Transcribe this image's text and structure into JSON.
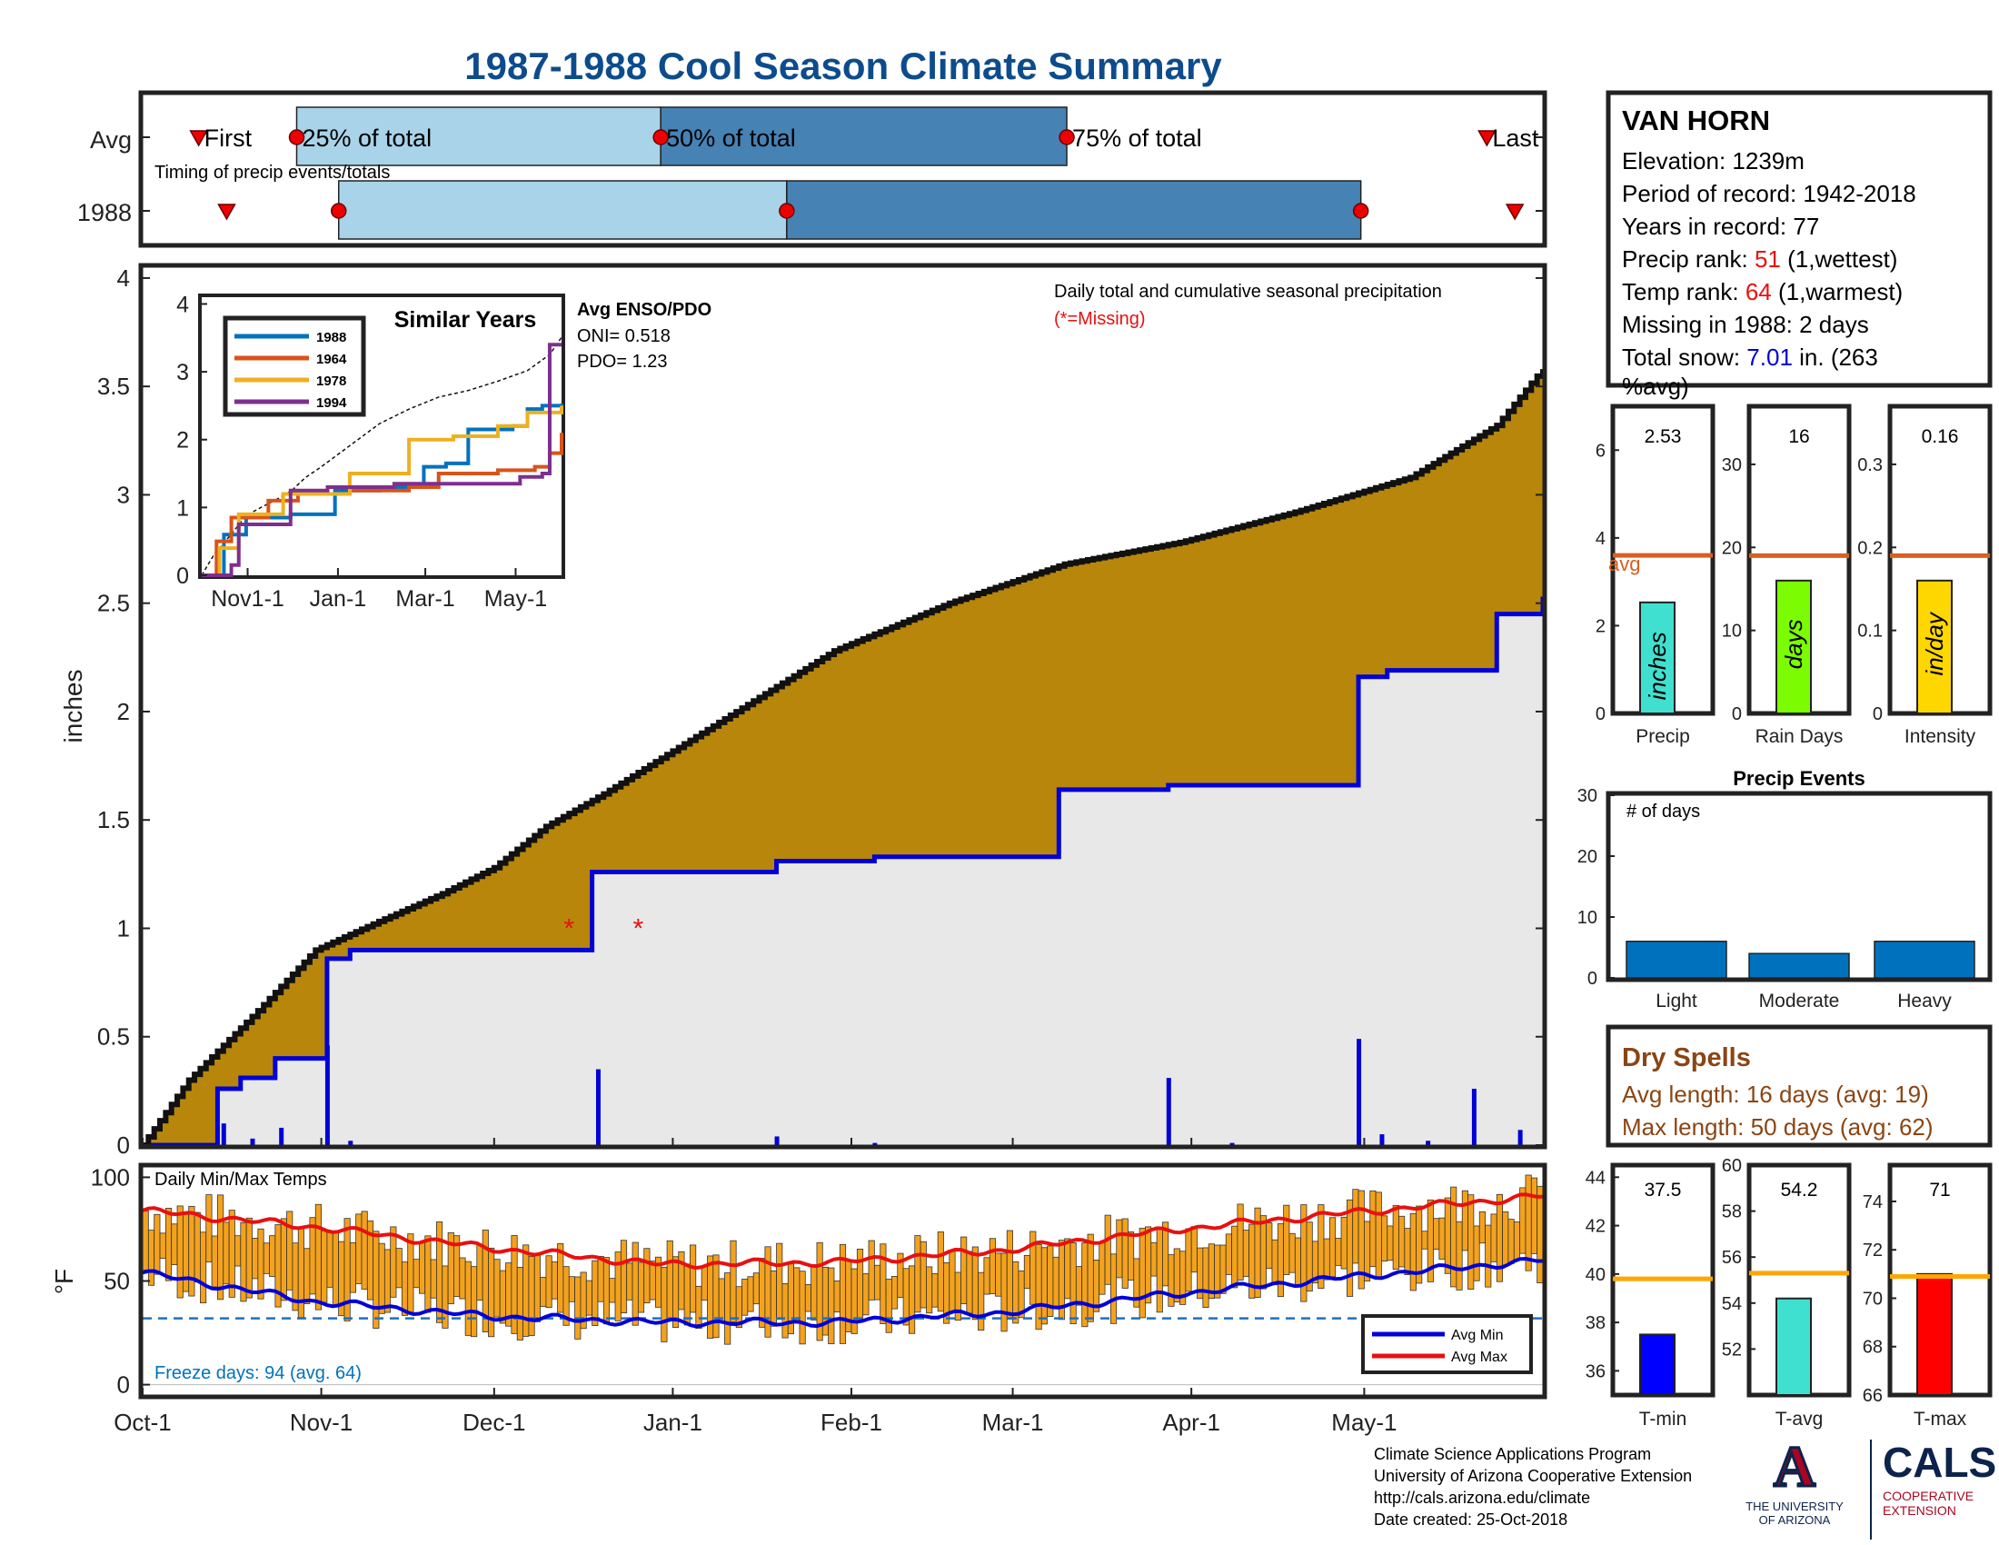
{
  "title": "1987-1988 Cool Season Climate Summary",
  "colors": {
    "title": "#0d4c8c",
    "precip_fill": "#b8860b",
    "avg_fill": "#e8e8e8",
    "blue": "#0000d8",
    "red": "#e81010",
    "light_blue": "#a9d3e8",
    "mid_blue": "#4682b4",
    "orange_bar": "#f4a21c",
    "avg_line": "#d95f20"
  },
  "timing": {
    "row_avg": "Avg",
    "row_year": "1988",
    "caption": "Timing of precip events/totals",
    "first": "First",
    "q25": "25% of total",
    "q50": "50% of total",
    "q75": "75% of total",
    "last": "Last",
    "avg_values": {
      "first": 0.04,
      "q25": 0.11,
      "q50": 0.37,
      "q75": 0.66,
      "last": 0.96
    },
    "year_values": {
      "first": 0.06,
      "q25": 0.14,
      "q50": 0.46,
      "q75": 0.87,
      "last": 0.98
    }
  },
  "station": {
    "name": "VAN HORN",
    "elevation": "Elevation: 1239m",
    "period": "Period of record: 1942-2018",
    "years": "Years in record: 77",
    "precip_rank_label": "Precip rank: ",
    "precip_rank_value": "51",
    "precip_rank_suffix": " (1,wettest)",
    "temp_rank_label": "Temp rank: ",
    "temp_rank_value": "64",
    "temp_rank_suffix": " (1,warmest)",
    "missing": "Missing in 1988: 2 days",
    "snow_label": "Total snow: ",
    "snow_value": "7.01",
    "snow_suffix": " in. (263",
    "snow_suffix2": "%avg)"
  },
  "main_chart": {
    "ylabel": "inches",
    "annotation": "Daily total and cumulative seasonal precipitation",
    "missing_note": "(*=Missing)",
    "y_ticks": [
      "0",
      "0.5",
      "1",
      "1.5",
      "2",
      "2.5",
      "3",
      "3.5",
      "4"
    ],
    "x_ticks": [
      "Oct-1",
      "Nov-1",
      "Dec-1",
      "Jan-1",
      "Feb-1",
      "Mar-1",
      "Apr-1",
      "May-1"
    ]
  },
  "inset": {
    "title": "Similar Years",
    "legend": [
      "1988",
      "1964",
      "1978",
      "1994"
    ],
    "legend_colors": [
      "#0072bd",
      "#d95319",
      "#edb120",
      "#7e2f8e"
    ],
    "y_ticks": [
      "0",
      "1",
      "2",
      "3",
      "4"
    ],
    "x_ticks": [
      "Nov1-1",
      "Jan-1",
      "Mar-1",
      "May-1"
    ],
    "enso_title": "Avg ENSO/PDO",
    "oni": "ONI= 0.518",
    "pdo": "PDO= 1.23"
  },
  "temp_chart": {
    "title": "Daily Min/Max Temps",
    "ylabel": "°F",
    "y_ticks": [
      "0",
      "50",
      "100"
    ],
    "freeze": "Freeze days: 94 (avg. 64)",
    "legend_min": "Avg Min",
    "legend_max": "Avg Max"
  },
  "chart_data": [
    {
      "type": "area",
      "title": "Daily total and cumulative seasonal precipitation",
      "ylabel": "inches",
      "ylim": [
        0,
        4
      ],
      "x_range": [
        "Oct-1",
        "May-31"
      ],
      "series": [
        {
          "name": "Avg cumulative",
          "x": [
            0,
            8,
            20,
            30,
            40,
            52,
            61,
            70,
            80,
            100,
            120,
            140,
            160,
            180,
            200,
            220,
            235,
            243
          ],
          "values": [
            0,
            0.3,
            0.62,
            0.9,
            1.02,
            1.16,
            1.28,
            1.47,
            1.62,
            1.95,
            2.28,
            2.5,
            2.68,
            2.78,
            2.92,
            3.08,
            3.32,
            3.58
          ]
        },
        {
          "name": "1988 cumulative",
          "x": [
            0,
            13,
            17,
            23,
            32,
            36,
            78,
            110,
            127,
            142,
            159,
            178,
            189,
            211,
            216,
            223,
            235,
            243
          ],
          "values": [
            0,
            0.26,
            0.31,
            0.4,
            0.86,
            0.9,
            1.26,
            1.31,
            1.33,
            1.33,
            1.64,
            1.66,
            1.66,
            2.16,
            2.19,
            2.19,
            2.45,
            2.53
          ]
        },
        {
          "name": "Daily precip",
          "x": [
            14,
            19,
            24,
            32,
            36,
            79,
            110,
            127,
            178,
            189,
            211,
            215,
            223,
            231,
            239
          ],
          "values": [
            0.1,
            0.03,
            0.08,
            0.46,
            0.02,
            0.35,
            0.04,
            0.01,
            0.31,
            0.01,
            0.49,
            0.05,
            0.02,
            0.26,
            0.07
          ]
        },
        {
          "name": "Missing",
          "x": [
            74,
            86
          ],
          "values": [
            1.0,
            1.0
          ]
        }
      ]
    },
    {
      "type": "line",
      "title": "Similar Years",
      "ylim": [
        0,
        4
      ],
      "series": [
        {
          "name": "1988",
          "x": [
            0,
            15,
            30,
            60,
            90,
            120,
            150,
            165,
            180,
            210,
            220,
            230,
            243
          ],
          "values": [
            0,
            0.6,
            0.85,
            0.9,
            1.25,
            1.3,
            1.6,
            1.65,
            2.15,
            2.2,
            2.45,
            2.5,
            2.53
          ]
        },
        {
          "name": "1964",
          "x": [
            0,
            10,
            20,
            45,
            65,
            100,
            140,
            160,
            200,
            225,
            235,
            243
          ],
          "values": [
            0,
            0.5,
            0.85,
            1.1,
            1.2,
            1.25,
            1.3,
            1.5,
            1.55,
            1.6,
            1.8,
            2.1
          ]
        },
        {
          "name": "1978",
          "x": [
            0,
            12,
            25,
            50,
            55,
            80,
            100,
            110,
            140,
            170,
            200,
            220,
            243
          ],
          "values": [
            0,
            0.4,
            0.9,
            0.9,
            1.2,
            1.2,
            1.5,
            1.5,
            2.0,
            2.05,
            2.2,
            2.4,
            2.5
          ]
        },
        {
          "name": "1994",
          "x": [
            0,
            20,
            25,
            40,
            60,
            85,
            130,
            170,
            215,
            230,
            235,
            243
          ],
          "values": [
            0,
            0.15,
            0.75,
            0.75,
            1.25,
            1.3,
            1.35,
            1.35,
            1.45,
            1.5,
            3.4,
            3.4
          ]
        }
      ]
    },
    {
      "type": "bar",
      "title": "Precip",
      "categories": [
        "Precip"
      ],
      "values": [
        2.53
      ],
      "avg": 3.6,
      "ylim": [
        0,
        7
      ],
      "label": "inches"
    },
    {
      "type": "bar",
      "title": "Rain Days",
      "categories": [
        "Rain Days"
      ],
      "values": [
        16
      ],
      "avg": 19,
      "ylim": [
        0,
        37
      ],
      "label": "days"
    },
    {
      "type": "bar",
      "title": "Intensity",
      "categories": [
        "Intensity"
      ],
      "values": [
        0.16
      ],
      "avg": 0.19,
      "ylim": [
        0,
        0.37
      ],
      "label": "in/day"
    },
    {
      "type": "bar",
      "title": "Precip Events",
      "ylabel": "# of days",
      "categories": [
        "Light",
        "Moderate",
        "Heavy"
      ],
      "values": [
        6,
        4,
        6
      ],
      "ylim": [
        0,
        30
      ]
    },
    {
      "type": "bar",
      "title": "Daily Min/Max Temps",
      "ylabel": "°F",
      "ylim": [
        -5,
        105
      ],
      "series": [
        {
          "name": "Avg Max",
          "x": [
            0,
            30,
            60,
            90,
            120,
            150,
            180,
            210,
            243
          ],
          "values": [
            84,
            76,
            66,
            58,
            59,
            65,
            75,
            83,
            91
          ]
        },
        {
          "name": "Avg Min",
          "x": [
            0,
            30,
            60,
            90,
            120,
            150,
            180,
            210,
            243
          ],
          "values": [
            54,
            40,
            33,
            30,
            30,
            35,
            44,
            52,
            60
          ]
        },
        {
          "name": "Freeze line",
          "x": [
            0,
            243
          ],
          "values": [
            32,
            32
          ]
        }
      ]
    },
    {
      "type": "bar",
      "title": "T-min",
      "categories": [
        "T-min"
      ],
      "values": [
        37.5
      ],
      "avg": 39.8,
      "ylim": [
        35,
        44.5
      ]
    },
    {
      "type": "bar",
      "title": "T-avg",
      "categories": [
        "T-avg"
      ],
      "values": [
        54.2
      ],
      "avg": 55.3,
      "ylim": [
        50,
        60
      ]
    },
    {
      "type": "bar",
      "title": "T-max",
      "categories": [
        "T-max"
      ],
      "values": [
        71
      ],
      "avg": 70.9,
      "ylim": [
        66,
        75.5
      ]
    }
  ],
  "right_panels": {
    "precip_value_labels": [
      "2.53",
      "16",
      "0.16"
    ],
    "precip_titles": [
      "Precip",
      "Rain Days",
      "Intensity"
    ],
    "precip_bar_labels": [
      "inches",
      "days",
      "in/day"
    ],
    "avg_label": "avg",
    "precip_ticks": [
      [
        "0",
        "2",
        "4",
        "6"
      ],
      [
        "0",
        "10",
        "20",
        "30"
      ],
      [
        "0",
        "0.1",
        "0.2",
        "0.3"
      ]
    ],
    "events_title": "Precip Events",
    "events_ylabel": "# of days",
    "events_ticks": [
      "0",
      "10",
      "20",
      "30"
    ],
    "events_categories": [
      "Light",
      "Moderate",
      "Heavy"
    ],
    "temp_value_labels": [
      "37.5",
      "54.2",
      "71"
    ],
    "temp_titles": [
      "T-min",
      "T-avg",
      "T-max"
    ],
    "temp_ticks": [
      [
        "36",
        "38",
        "40",
        "42",
        "44"
      ],
      [
        "52",
        "54",
        "56",
        "58",
        "60"
      ],
      [
        "66",
        "68",
        "70",
        "72",
        "74"
      ]
    ]
  },
  "dry_spells": {
    "title": "Dry Spells",
    "avg_length": "Avg length: 16 days (avg: 19)",
    "max_length": "Max length: 50 days (avg: 62)"
  },
  "footer": {
    "line1": "Climate Science Applications Program",
    "line2": "University of Arizona Cooperative Extension",
    "line3": "http://cals.arizona.edu/climate",
    "line4": " Date created: 25-Oct-2018"
  },
  "logos": {
    "ua_letter": "A",
    "ua_line1": "THE UNIVERSITY",
    "ua_line2": "OF ARIZONA",
    "cals": "CALS",
    "cals_line1": "COOPERATIVE",
    "cals_line2": "EXTENSION"
  }
}
